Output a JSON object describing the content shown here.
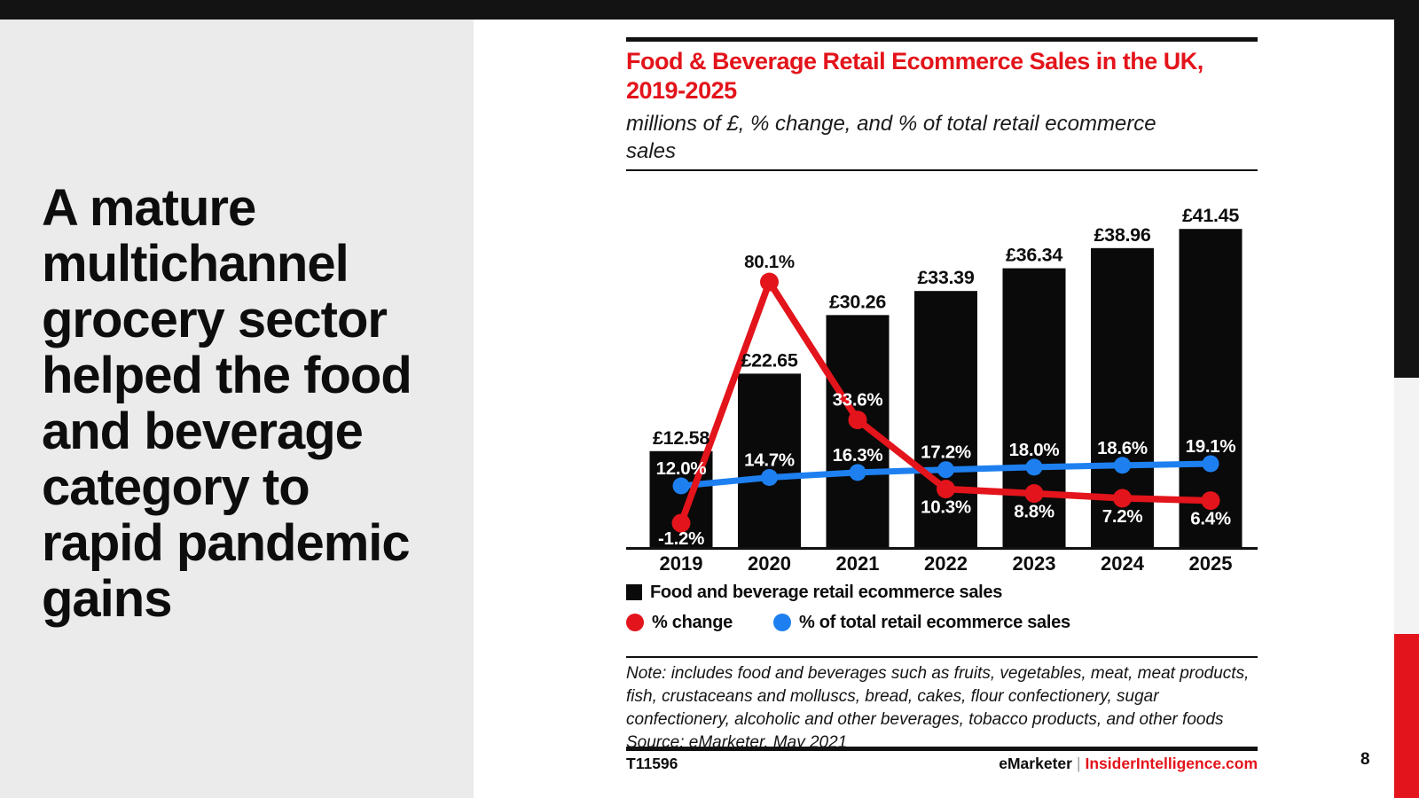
{
  "page": {
    "footer_id": "T11596",
    "brand": "eMarketer",
    "brand_separator": "|",
    "brand_site": "InsiderIntelligence.com",
    "page_number": "8"
  },
  "sidebar": {
    "headline": "A mature multichannel grocery sector helped the food and beverage category to rapid pandemic gains",
    "headline_lines": [
      "A mature",
      "multichannel",
      "grocery sector",
      "helped the food",
      "and beverage",
      "category to",
      "rapid pandemic",
      "gains"
    ]
  },
  "colors": {
    "accent_red": "#e3141b",
    "line_blue": "#1e80f0",
    "bar_black": "#0a0a0a",
    "panel_gray": "#ebebeb",
    "top_bar_black": "#131313"
  },
  "chart_data": {
    "type": "combo-bar-line",
    "title": "Food & Beverage Retail Ecommerce Sales in the UK, 2019-2025",
    "subtitle": "millions of £, % change, and % of total retail ecommerce sales",
    "categories": [
      "2019",
      "2020",
      "2021",
      "2022",
      "2023",
      "2024",
      "2025"
    ],
    "series": [
      {
        "name": "Food and beverage retail ecommerce sales",
        "type": "bar",
        "unit": "millions of £",
        "color": "#0a0a0a",
        "values": [
          12.58,
          22.65,
          30.26,
          33.39,
          36.34,
          38.96,
          41.45
        ],
        "labels": [
          "£12.58",
          "£22.65",
          "£30.26",
          "£33.39",
          "£36.34",
          "£38.96",
          "£41.45"
        ]
      },
      {
        "name": "% change",
        "type": "line",
        "color": "#e3141b",
        "values": [
          -1.2,
          80.1,
          33.6,
          10.3,
          8.8,
          7.2,
          6.4
        ],
        "labels": [
          "-1.2%",
          "80.1%",
          "33.6%",
          "10.3%",
          "8.8%",
          "7.2%",
          "6.4%"
        ],
        "label_placement": [
          "below",
          "above",
          "above",
          "below",
          "below",
          "below",
          "below"
        ],
        "label_colors": [
          "#ffffff",
          "#111111",
          "#ffffff",
          "#ffffff",
          "#ffffff",
          "#ffffff",
          "#ffffff"
        ]
      },
      {
        "name": "% of total retail ecommerce sales",
        "type": "line",
        "color": "#1e80f0",
        "values": [
          12.0,
          14.7,
          16.3,
          17.2,
          18.0,
          18.6,
          19.1
        ],
        "labels": [
          "12.0%",
          "14.7%",
          "16.3%",
          "17.2%",
          "18.0%",
          "18.6%",
          "19.1%"
        ],
        "label_placement": "above",
        "label_color": "#ffffff"
      }
    ],
    "legend_position": "below",
    "grid": false,
    "note": "Note: includes food and beverages such as fruits, vegetables, meat, meat products, fish, crustaceans and molluscs, bread, cakes, flour confectionery, sugar confectionery, alcoholic and other beverages, tobacco products, and other foods",
    "source": "Source: eMarketer, May 2021"
  }
}
